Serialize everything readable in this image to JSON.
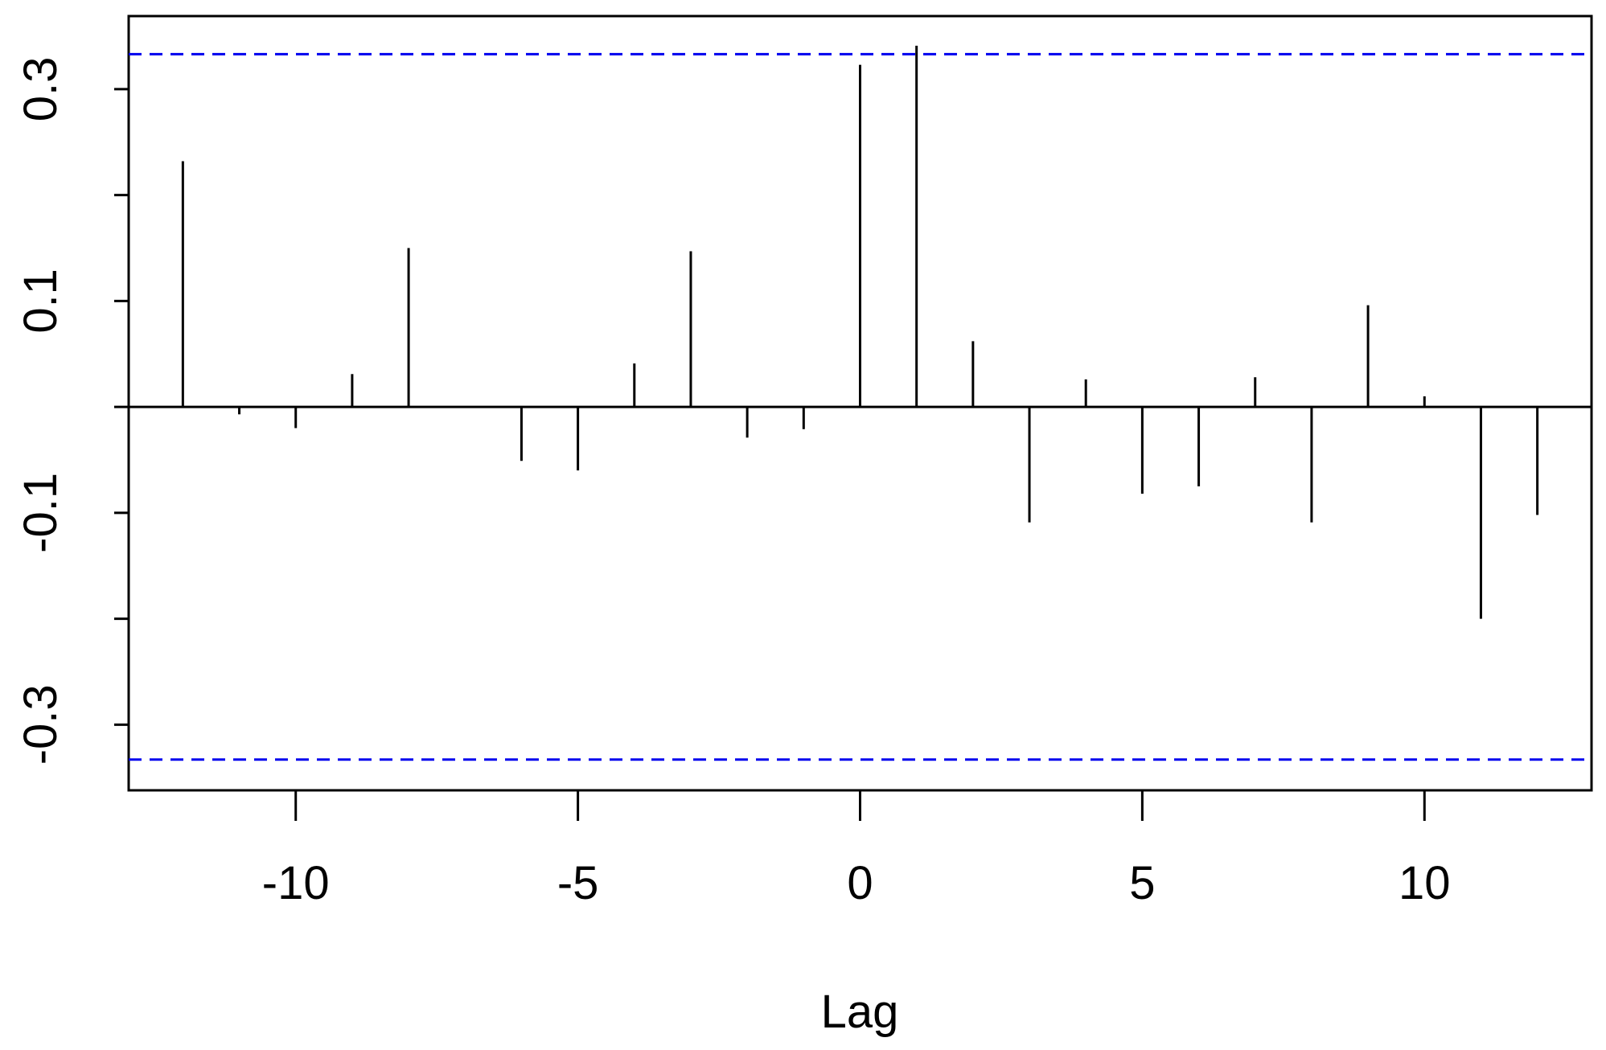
{
  "chart_data": {
    "type": "acf-stem",
    "x_label": "Lag",
    "x": [
      -12,
      -11,
      -10,
      -9,
      -8,
      -7,
      -6,
      -5,
      -4,
      -3,
      -2,
      -1,
      0,
      1,
      2,
      3,
      4,
      5,
      6,
      7,
      8,
      9,
      10,
      11,
      12
    ],
    "values": [
      0.232,
      -0.007,
      -0.02,
      0.031,
      0.15,
      0,
      -0.051,
      -0.06,
      0.041,
      0.147,
      -0.029,
      -0.021,
      0.323,
      0.341,
      0.062,
      -0.109,
      0.026,
      -0.082,
      -0.075,
      0.028,
      -0.109,
      0.096,
      0.01,
      -0.2,
      -0.102
    ],
    "color": "#000000",
    "ci_lines": [
      0.333,
      -0.333
    ],
    "ci_color": "#0000ee",
    "xlim": [
      -12.96,
      12.96
    ],
    "xticks": [
      -10,
      -5,
      0,
      5,
      10
    ],
    "ylim": [
      -0.362,
      0.369
    ],
    "yticks": [
      -0.3,
      -0.2,
      -0.1,
      0,
      0.1,
      0.2,
      0.3
    ],
    "ytick_label_step": 2
  }
}
